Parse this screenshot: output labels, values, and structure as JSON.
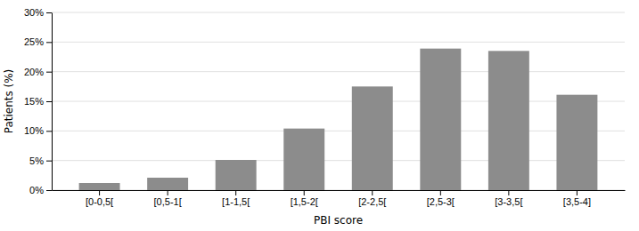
{
  "chart_data": {
    "type": "bar",
    "categories": [
      "[0-0,5[",
      "[0,5-1[",
      "[1-1,5[",
      "[1,5-2[",
      "[2-2,5[",
      "[2,5-3[",
      "[3-3,5[",
      "[3,5-4]"
    ],
    "values": [
      1.2,
      2.1,
      5.1,
      10.4,
      17.5,
      23.9,
      23.5,
      16.1
    ],
    "color": "#8c8c8c",
    "xlabel": "PBI score",
    "ylabel": "Patients (%)",
    "ylim": [
      0,
      30
    ],
    "yticks": [
      {
        "value": 0,
        "label": "0%"
      },
      {
        "value": 5,
        "label": "5%"
      },
      {
        "value": 10,
        "label": "10%"
      },
      {
        "value": 15,
        "label": "15%"
      },
      {
        "value": 20,
        "label": "20%"
      },
      {
        "value": 25,
        "label": "25%"
      },
      {
        "value": 30,
        "label": "30%"
      }
    ],
    "grid": true
  }
}
